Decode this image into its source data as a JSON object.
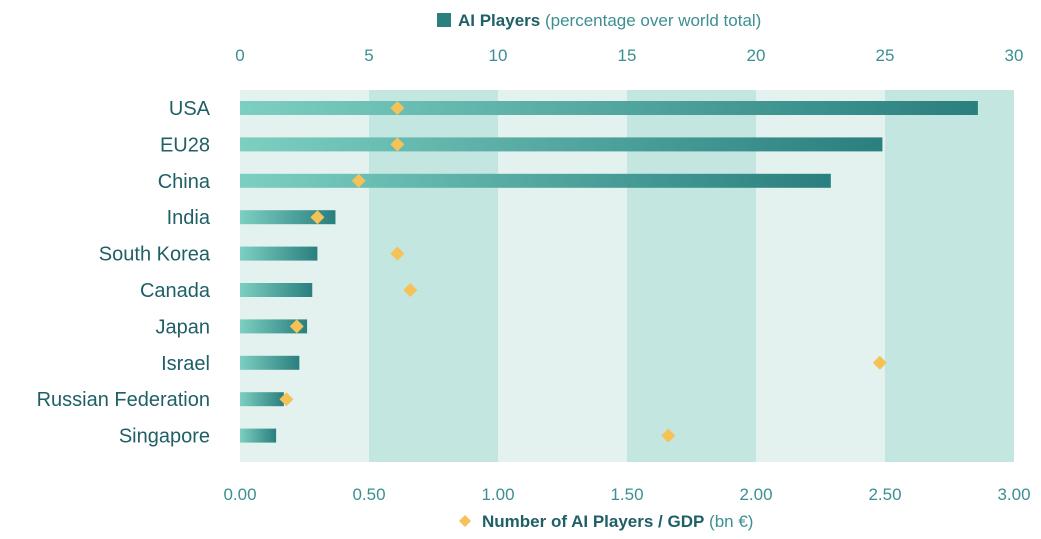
{
  "chart_data": {
    "type": "bar",
    "categories": [
      "USA",
      "EU28",
      "China",
      "India",
      "South Korea",
      "Canada",
      "Japan",
      "Israel",
      "Russian Federation",
      "Singapore"
    ],
    "series": [
      {
        "name": "AI Players",
        "name_suffix": " (percentage over world total)",
        "axis": "top",
        "mark": "bar",
        "values": [
          28.6,
          24.9,
          22.9,
          3.7,
          3.0,
          2.8,
          2.6,
          2.3,
          1.7,
          1.4
        ]
      },
      {
        "name": "Number of AI Players / GDP",
        "name_suffix": " (bn €)",
        "axis": "bottom",
        "mark": "diamond",
        "values": [
          0.61,
          0.61,
          0.46,
          0.3,
          0.61,
          0.66,
          0.22,
          2.48,
          0.18,
          1.66
        ]
      }
    ],
    "x_top": {
      "ticks": [
        "0",
        "5",
        "10",
        "15",
        "20",
        "25",
        "30"
      ],
      "lim": [
        0,
        30
      ]
    },
    "x_bottom": {
      "ticks": [
        "0.00",
        "0.50",
        "1.00",
        "1.50",
        "2.00",
        "2.50",
        "3.00"
      ],
      "lim": [
        0,
        3
      ]
    },
    "orientation": "horizontal",
    "grid": "alternating vertical bands",
    "legend": "top (bars) and bottom (diamonds)",
    "colors": {
      "bar": "#2a7f7f",
      "bar_light": "#7ccfc1",
      "diamond": "#f4c256",
      "band_light": "#e3f2ee",
      "band_dark": "#c4e6e1",
      "text": "#1f5f66",
      "tick": "#3c8f92"
    }
  }
}
